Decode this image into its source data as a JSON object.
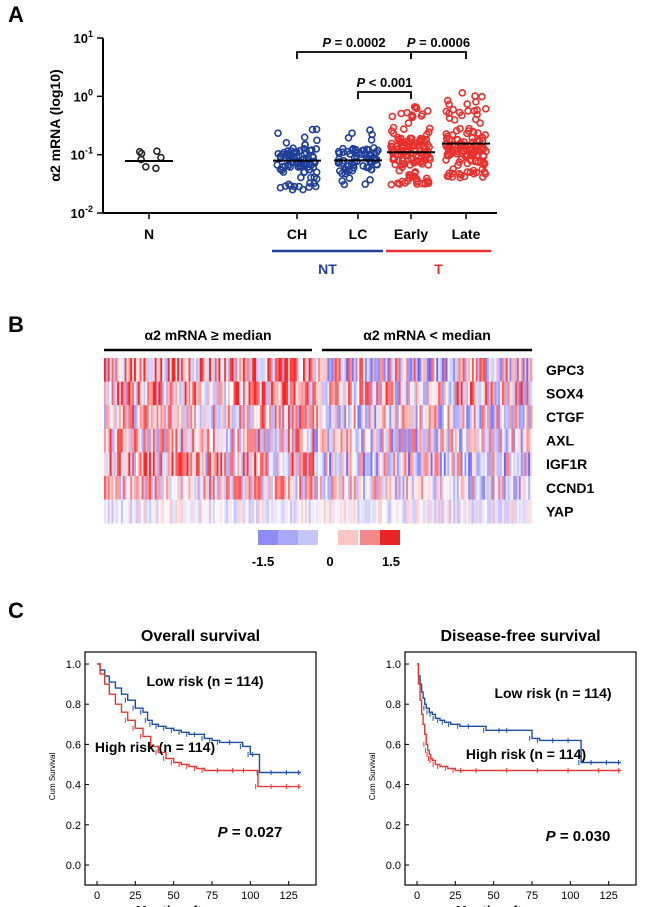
{
  "panels": {
    "a": {
      "letter": "A"
    },
    "b": {
      "letter": "B"
    },
    "c": {
      "letter": "C"
    }
  },
  "colors": {
    "nt": "#1f3f99",
    "t": "#e8302c",
    "blue_line": "#1a4fa0",
    "red_line": "#e23a34"
  },
  "chart_data": [
    {
      "type": "scatter",
      "panel": "A",
      "yscale": "log",
      "ylabel": "α2 mRNA (log10)",
      "ylim": [
        0.01,
        10
      ],
      "ytick_labels": [
        {
          "base": "10",
          "exp": "1"
        },
        {
          "base": "10",
          "exp": "0"
        },
        {
          "base": "10",
          "exp": "-1"
        },
        {
          "base": "10",
          "exp": "-2"
        }
      ],
      "categories": [
        "N",
        "CH",
        "LC",
        "Early",
        "Late"
      ],
      "medians": [
        0.078,
        0.079,
        0.08,
        0.11,
        0.155
      ],
      "point_ranges": [
        [
          0.04,
          0.14
        ],
        [
          0.025,
          0.32
        ],
        [
          0.03,
          0.3
        ],
        [
          0.03,
          0.75
        ],
        [
          0.04,
          1.4
        ]
      ],
      "groups": [
        {
          "label": "NT",
          "members": [
            "CH",
            "LC"
          ],
          "color": "#1f3f99"
        },
        {
          "label": "T",
          "members": [
            "Early",
            "Late"
          ],
          "color": "#e8302c"
        }
      ],
      "comparisons": [
        {
          "from": "CH",
          "to": "Early",
          "p_italic": "P",
          "p_rest": " = 0.0002"
        },
        {
          "from": "LC",
          "to": "Early",
          "p_italic": "P",
          "p_rest": " < 0.001"
        },
        {
          "from": "Early",
          "to": "Late",
          "p_italic": "P",
          "p_rest": " = 0.0006"
        }
      ]
    },
    {
      "type": "heatmap",
      "panel": "B",
      "column_groups": [
        "α2 mRNA ≥ median",
        "α2 mRNA < median"
      ],
      "rows": [
        "GPC3",
        "SOX4",
        "CTGF",
        "AXL",
        "IGF1R",
        "CCND1",
        "YAP"
      ],
      "colorbar": {
        "min_label": "-1.5",
        "mid_label": "0",
        "max_label": "1.5",
        "range": [
          -1.5,
          1.5
        ]
      }
    },
    {
      "type": "line",
      "subtype": "kaplan-meier",
      "panel": "C",
      "title": "Overall survival",
      "xlabel": "Months after surgery",
      "ylabel": "Cum Survival",
      "xlim": [
        0,
        135
      ],
      "ylim": [
        0,
        1.0
      ],
      "xticks": [
        "0",
        "25",
        "50",
        "75",
        "100",
        "125"
      ],
      "yticks": [
        "0.0",
        "0.2",
        "0.4",
        "0.6",
        "0.8",
        "1.0"
      ],
      "series": [
        {
          "name": "Low risk",
          "label": "Low risk (n = 114)",
          "color": "#1a4fa0",
          "x": [
            0,
            2,
            5,
            8,
            12,
            16,
            20,
            25,
            30,
            33,
            36,
            40,
            45,
            50,
            55,
            60,
            65,
            70,
            75,
            80,
            88,
            95,
            100,
            103,
            106,
            115,
            125,
            133
          ],
          "y": [
            1.0,
            0.97,
            0.94,
            0.91,
            0.88,
            0.85,
            0.82,
            0.78,
            0.76,
            0.72,
            0.7,
            0.69,
            0.68,
            0.67,
            0.66,
            0.65,
            0.65,
            0.63,
            0.62,
            0.61,
            0.61,
            0.59,
            0.55,
            0.55,
            0.46,
            0.46,
            0.46,
            0.46
          ]
        },
        {
          "name": "High risk",
          "label": "High risk (n = 114)",
          "color": "#e23a34",
          "x": [
            0,
            2,
            5,
            8,
            12,
            16,
            20,
            25,
            30,
            35,
            40,
            45,
            50,
            55,
            60,
            65,
            70,
            80,
            90,
            97,
            105,
            115,
            125,
            133
          ],
          "y": [
            1.0,
            0.95,
            0.9,
            0.85,
            0.8,
            0.76,
            0.72,
            0.68,
            0.64,
            0.59,
            0.56,
            0.53,
            0.51,
            0.5,
            0.49,
            0.48,
            0.47,
            0.47,
            0.47,
            0.47,
            0.39,
            0.39,
            0.39,
            0.39
          ]
        }
      ],
      "annotation": {
        "p_italic": "P",
        "p_rest": " = 0.027"
      }
    },
    {
      "type": "line",
      "subtype": "kaplan-meier",
      "panel": "C",
      "title": "Disease-free survival",
      "xlabel": "Months after surgery",
      "ylabel": "Cum Survival",
      "xlim": [
        0,
        135
      ],
      "ylim": [
        0,
        1.0
      ],
      "xticks": [
        "0",
        "25",
        "50",
        "75",
        "100",
        "125"
      ],
      "yticks": [
        "0.0",
        "0.2",
        "0.4",
        "0.6",
        "0.8",
        "1.0"
      ],
      "series": [
        {
          "name": "Low risk",
          "label": "Low risk (n = 114)",
          "color": "#1a4fa0",
          "x": [
            0,
            1,
            2,
            3,
            4,
            5,
            6,
            8,
            10,
            12,
            15,
            18,
            22,
            28,
            35,
            45,
            55,
            60,
            75,
            80,
            90,
            100,
            107,
            115,
            125,
            133
          ],
          "y": [
            1.0,
            0.94,
            0.9,
            0.86,
            0.83,
            0.8,
            0.78,
            0.76,
            0.75,
            0.73,
            0.72,
            0.71,
            0.7,
            0.69,
            0.69,
            0.67,
            0.67,
            0.67,
            0.63,
            0.62,
            0.62,
            0.62,
            0.51,
            0.51,
            0.51,
            0.51
          ]
        },
        {
          "name": "High risk",
          "label": "High risk (n = 114)",
          "color": "#e23a34",
          "x": [
            0,
            1,
            2,
            3,
            4,
            5,
            6,
            7,
            8,
            9,
            10,
            12,
            15,
            20,
            25,
            30,
            40,
            60,
            80,
            100,
            120,
            133
          ],
          "y": [
            1.0,
            0.9,
            0.82,
            0.75,
            0.7,
            0.65,
            0.6,
            0.57,
            0.55,
            0.53,
            0.52,
            0.5,
            0.49,
            0.48,
            0.47,
            0.47,
            0.47,
            0.47,
            0.47,
            0.47,
            0.47,
            0.47
          ]
        }
      ],
      "annotation": {
        "p_italic": "P",
        "p_rest": " = 0.030"
      }
    }
  ]
}
